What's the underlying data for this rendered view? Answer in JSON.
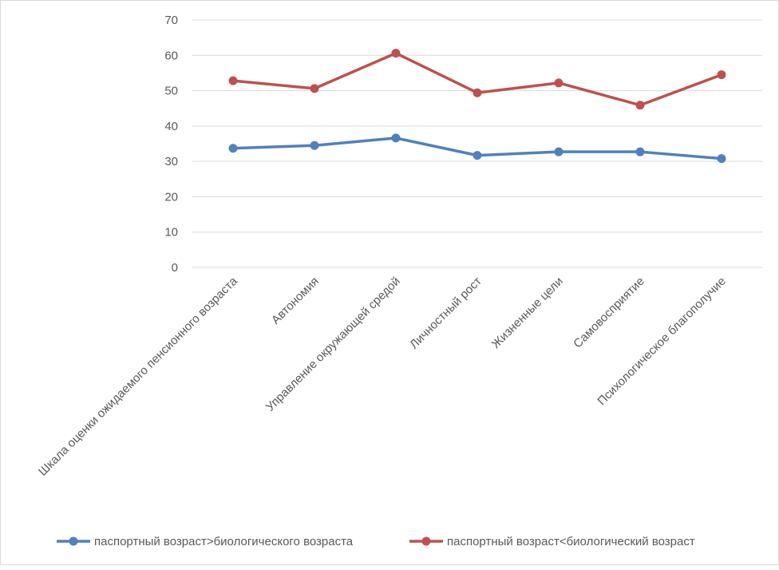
{
  "chart_data": {
    "type": "line",
    "title": "",
    "xlabel": "",
    "ylabel": "",
    "ylim": [
      0,
      70
    ],
    "yticks": [
      0,
      10,
      20,
      30,
      40,
      50,
      60,
      70
    ],
    "grid": true,
    "legend_position": "bottom",
    "categories": [
      "Шкала оценки ожидаемого пенсионного возраста",
      "Автономия",
      "Управление окружающей средой",
      "Личностный рост",
      "Жизненные цели",
      "Самовосприятие",
      "Психологическое благополучие"
    ],
    "series": [
      {
        "name": "паспортный возраст>биологического возраста",
        "color": "#4f81bd",
        "values": [
          33.7,
          34.5,
          36.6,
          31.7,
          32.7,
          32.7,
          30.8
        ]
      },
      {
        "name": "паспортный возраст<биологический возраст",
        "color": "#c0504d",
        "values": [
          52.8,
          50.6,
          60.6,
          49.4,
          52.2,
          45.9,
          54.5
        ]
      }
    ]
  }
}
